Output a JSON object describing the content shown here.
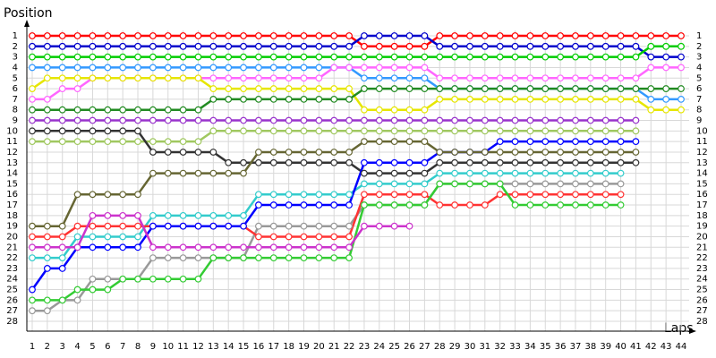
{
  "chart_data": {
    "type": "line",
    "y_title": "Position",
    "x_title": "Laps",
    "x": [
      1,
      2,
      3,
      4,
      5,
      6,
      7,
      8,
      9,
      10,
      11,
      12,
      13,
      14,
      15,
      16,
      17,
      18,
      19,
      20,
      21,
      22,
      23,
      24,
      25,
      26,
      27,
      28,
      29,
      30,
      31,
      32,
      33,
      34,
      35,
      36,
      37,
      38,
      39,
      40,
      41,
      42,
      43,
      44
    ],
    "xlim": [
      1,
      44
    ],
    "xticks": [
      1,
      2,
      3,
      4,
      5,
      6,
      7,
      8,
      9,
      10,
      11,
      12,
      13,
      14,
      15,
      16,
      17,
      18,
      19,
      20,
      21,
      22,
      23,
      24,
      25,
      26,
      27,
      28,
      29,
      30,
      31,
      32,
      33,
      34,
      35,
      36,
      37,
      38,
      39,
      40,
      41,
      42,
      43,
      44
    ],
    "ylim": [
      28,
      1
    ],
    "yticks": [
      1,
      2,
      3,
      4,
      5,
      6,
      7,
      8,
      9,
      10,
      11,
      12,
      13,
      14,
      15,
      16,
      17,
      18,
      19,
      20,
      21,
      22,
      23,
      24,
      25,
      26,
      27,
      28
    ],
    "grid": true,
    "series": [
      {
        "color": "#ff0000",
        "values": [
          1,
          1,
          1,
          1,
          1,
          1,
          1,
          1,
          1,
          1,
          1,
          1,
          1,
          1,
          1,
          1,
          1,
          1,
          1,
          1,
          1,
          1,
          2,
          2,
          2,
          2,
          2,
          1,
          1,
          1,
          1,
          1,
          1,
          1,
          1,
          1,
          1,
          1,
          1,
          1,
          1,
          1,
          1,
          1
        ]
      },
      {
        "color": "#0000cc",
        "values": [
          2,
          2,
          2,
          2,
          2,
          2,
          2,
          2,
          2,
          2,
          2,
          2,
          2,
          2,
          2,
          2,
          2,
          2,
          2,
          2,
          2,
          2,
          1,
          1,
          1,
          1,
          1,
          2,
          2,
          2,
          2,
          2,
          2,
          2,
          2,
          2,
          2,
          2,
          2,
          2,
          2,
          3,
          3,
          3
        ]
      },
      {
        "color": "#00cc00",
        "values": [
          3,
          3,
          3,
          3,
          3,
          3,
          3,
          3,
          3,
          3,
          3,
          3,
          3,
          3,
          3,
          3,
          3,
          3,
          3,
          3,
          3,
          3,
          3,
          3,
          3,
          3,
          3,
          3,
          3,
          3,
          3,
          3,
          3,
          3,
          3,
          3,
          3,
          3,
          3,
          3,
          3,
          2,
          2,
          2
        ]
      },
      {
        "color": "#3399ff",
        "values": [
          4,
          4,
          4,
          4,
          4,
          4,
          4,
          4,
          4,
          4,
          4,
          4,
          4,
          4,
          4,
          4,
          4,
          4,
          4,
          4,
          4,
          4,
          5,
          5,
          5,
          5,
          5,
          6,
          6,
          6,
          6,
          6,
          6,
          6,
          6,
          6,
          6,
          6,
          6,
          6,
          6,
          7,
          7,
          7
        ]
      },
      {
        "color": "#ff66ff",
        "values": [
          7,
          7,
          6,
          6,
          5,
          5,
          5,
          5,
          5,
          5,
          5,
          5,
          5,
          5,
          5,
          5,
          5,
          5,
          5,
          5,
          4,
          4,
          4,
          4,
          4,
          4,
          4,
          5,
          5,
          5,
          5,
          5,
          5,
          5,
          5,
          5,
          5,
          5,
          5,
          5,
          5,
          4,
          4,
          4
        ]
      },
      {
        "color": "#e6e600",
        "values": [
          6,
          5,
          5,
          5,
          5,
          5,
          5,
          5,
          5,
          5,
          5,
          5,
          6,
          6,
          6,
          6,
          6,
          6,
          6,
          6,
          6,
          6,
          8,
          8,
          8,
          8,
          8,
          7,
          7,
          7,
          7,
          7,
          7,
          7,
          7,
          7,
          7,
          7,
          7,
          7,
          7,
          8,
          8,
          8
        ]
      },
      {
        "color": "#228b22",
        "values": [
          8,
          8,
          8,
          8,
          8,
          8,
          8,
          8,
          8,
          8,
          8,
          8,
          7,
          7,
          7,
          7,
          7,
          7,
          7,
          7,
          7,
          7,
          6,
          6,
          6,
          6,
          6,
          6,
          6,
          6,
          6,
          6,
          6,
          6,
          6,
          6,
          6,
          6,
          6,
          6,
          6,
          6,
          6,
          6
        ]
      },
      {
        "color": "#9933cc",
        "values": [
          9,
          9,
          9,
          9,
          9,
          9,
          9,
          9,
          9,
          9,
          9,
          9,
          9,
          9,
          9,
          9,
          9,
          9,
          9,
          9,
          9,
          9,
          9,
          9,
          9,
          9,
          9,
          9,
          9,
          9,
          9,
          9,
          9,
          9,
          9,
          9,
          9,
          9,
          9,
          9,
          9,
          null,
          null,
          null
        ]
      },
      {
        "color": "#a0c860",
        "values": [
          11,
          11,
          11,
          11,
          11,
          11,
          11,
          11,
          11,
          11,
          11,
          11,
          10,
          10,
          10,
          10,
          10,
          10,
          10,
          10,
          10,
          10,
          10,
          10,
          10,
          10,
          10,
          10,
          10,
          10,
          10,
          10,
          10,
          10,
          10,
          10,
          10,
          10,
          10,
          10,
          10,
          null,
          null,
          null
        ]
      },
      {
        "color": "#333333",
        "values": [
          10,
          10,
          10,
          10,
          10,
          10,
          10,
          10,
          12,
          12,
          12,
          12,
          12,
          13,
          13,
          13,
          13,
          13,
          13,
          13,
          13,
          13,
          14,
          14,
          14,
          14,
          14,
          13,
          13,
          13,
          13,
          13,
          13,
          13,
          13,
          13,
          13,
          13,
          13,
          13,
          13,
          null,
          null,
          null
        ]
      },
      {
        "color": "#33cccc",
        "values": [
          22,
          22,
          22,
          20,
          20,
          20,
          20,
          20,
          18,
          18,
          18,
          18,
          18,
          18,
          18,
          16,
          16,
          16,
          16,
          16,
          16,
          16,
          15,
          15,
          15,
          15,
          15,
          14,
          14,
          14,
          14,
          14,
          14,
          14,
          14,
          14,
          14,
          14,
          14,
          14,
          null,
          null,
          null,
          null
        ]
      },
      {
        "color": "#999999",
        "values": [
          27,
          27,
          26,
          26,
          24,
          24,
          24,
          24,
          22,
          22,
          22,
          22,
          22,
          22,
          22,
          19,
          19,
          19,
          19,
          19,
          19,
          19,
          17,
          17,
          17,
          17,
          17,
          15,
          15,
          15,
          15,
          15,
          15,
          15,
          15,
          15,
          15,
          15,
          15,
          15,
          null,
          null,
          null,
          null
        ]
      },
      {
        "color": "#ff3333",
        "values": [
          20,
          20,
          20,
          19,
          19,
          19,
          19,
          19,
          19,
          19,
          19,
          19,
          19,
          19,
          19,
          20,
          20,
          20,
          20,
          20,
          20,
          20,
          16,
          16,
          16,
          16,
          16,
          17,
          17,
          17,
          17,
          16,
          16,
          16,
          16,
          16,
          16,
          16,
          16,
          16,
          null,
          null,
          null,
          null
        ]
      },
      {
        "color": "#33cc33",
        "values": [
          26,
          26,
          26,
          25,
          25,
          25,
          24,
          24,
          24,
          24,
          24,
          24,
          22,
          22,
          22,
          22,
          22,
          22,
          22,
          22,
          22,
          22,
          17,
          17,
          17,
          17,
          17,
          15,
          15,
          15,
          15,
          15,
          17,
          17,
          17,
          17,
          17,
          17,
          17,
          17,
          null,
          null,
          null,
          null
        ]
      },
      {
        "color": "#0000ff",
        "values": [
          25,
          23,
          23,
          21,
          21,
          21,
          21,
          21,
          19,
          19,
          19,
          19,
          19,
          19,
          19,
          17,
          17,
          17,
          17,
          17,
          17,
          17,
          13,
          13,
          13,
          13,
          13,
          12,
          12,
          12,
          12,
          11,
          11,
          11,
          11,
          11,
          11,
          11,
          11,
          11,
          11,
          null,
          null,
          null
        ]
      },
      {
        "color": "#cc33cc",
        "values": [
          21,
          21,
          21,
          21,
          18,
          18,
          18,
          18,
          21,
          21,
          21,
          21,
          21,
          21,
          21,
          21,
          21,
          21,
          21,
          21,
          21,
          21,
          19,
          19,
          19,
          19,
          null,
          null,
          null,
          null,
          null,
          null,
          null,
          null,
          null,
          null,
          null,
          null,
          null,
          null,
          null,
          null,
          null,
          null
        ]
      },
      {
        "color": "#666633",
        "values": [
          19,
          19,
          19,
          16,
          16,
          16,
          16,
          16,
          14,
          14,
          14,
          14,
          14,
          14,
          14,
          12,
          12,
          12,
          12,
          12,
          12,
          12,
          11,
          11,
          11,
          11,
          11,
          12,
          12,
          12,
          12,
          12,
          12,
          12,
          12,
          12,
          12,
          12,
          12,
          12,
          12,
          null,
          null,
          null
        ]
      }
    ]
  }
}
